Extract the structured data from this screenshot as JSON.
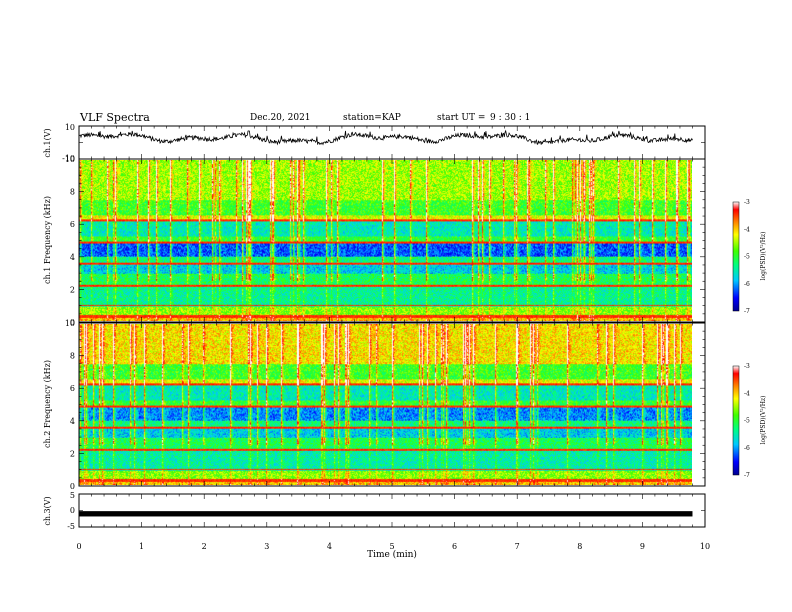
{
  "header": {
    "title": "VLF Spectra",
    "date": "Dec.20, 2021",
    "station": "station=KAP",
    "start_label": "start  UT =",
    "start_time": "9 : 30 : 1"
  },
  "chart_data": [
    {
      "type": "line",
      "name": "ch1-waveform",
      "ylabel": "ch.1(V)",
      "ylim": [
        -10,
        10
      ],
      "yticks": [
        "10",
        "-10"
      ],
      "xlim": [
        0,
        10
      ],
      "data_extent_x": [
        0,
        9.8
      ],
      "y_range_observed": [
        -2,
        7
      ],
      "description_series": "noisy waveform fluctuating between about -2 V and 7 V"
    },
    {
      "type": "heatmap",
      "name": "ch1-spectrogram",
      "ylabel": "ch.1 Frequency (kHz)",
      "ylim": [
        0,
        10
      ],
      "yticks": [
        "0",
        "2",
        "4",
        "6",
        "8",
        "10"
      ],
      "xlim": [
        0,
        10
      ],
      "data_extent_x": [
        0,
        9.8
      ],
      "colorbar": {
        "label": "log(PSD)(V²/Hz)",
        "range": [
          -7,
          -3
        ],
        "ticks": [
          "-3",
          "-4",
          "-5",
          "-6",
          "-7"
        ]
      }
    },
    {
      "type": "heatmap",
      "name": "ch2-spectrogram",
      "ylabel": "ch.2 Frequency (kHz)",
      "ylim": [
        0,
        10
      ],
      "yticks": [
        "0",
        "2",
        "4",
        "6",
        "8",
        "10"
      ],
      "xlim": [
        0,
        10
      ],
      "data_extent_x": [
        0,
        9.8
      ],
      "colorbar": {
        "label": "log(PSD)(V²/Hz)",
        "range": [
          -7,
          -3
        ],
        "ticks": [
          "-3",
          "-4",
          "-5",
          "-6",
          "-7"
        ]
      }
    },
    {
      "type": "line",
      "name": "ch3-waveform",
      "ylabel": "ch.3(V)",
      "ylim": [
        -5,
        5
      ],
      "yticks": [
        "5",
        "0",
        "-5"
      ],
      "xlim": [
        0,
        10
      ],
      "data_extent_x": [
        0,
        9.8
      ],
      "y_range_observed": [
        -1.2,
        -0.8
      ]
    }
  ],
  "xaxis": {
    "label": "Time  (min)",
    "ticks": [
      "0",
      "1",
      "2",
      "3",
      "4",
      "5",
      "6",
      "7",
      "8",
      "9",
      "10"
    ]
  },
  "colors": {
    "colormap": [
      "#000090",
      "#0000ff",
      "#00c8ff",
      "#00ff80",
      "#40ff00",
      "#ffff00",
      "#ff8000",
      "#ff0000",
      "#ffffff"
    ]
  }
}
